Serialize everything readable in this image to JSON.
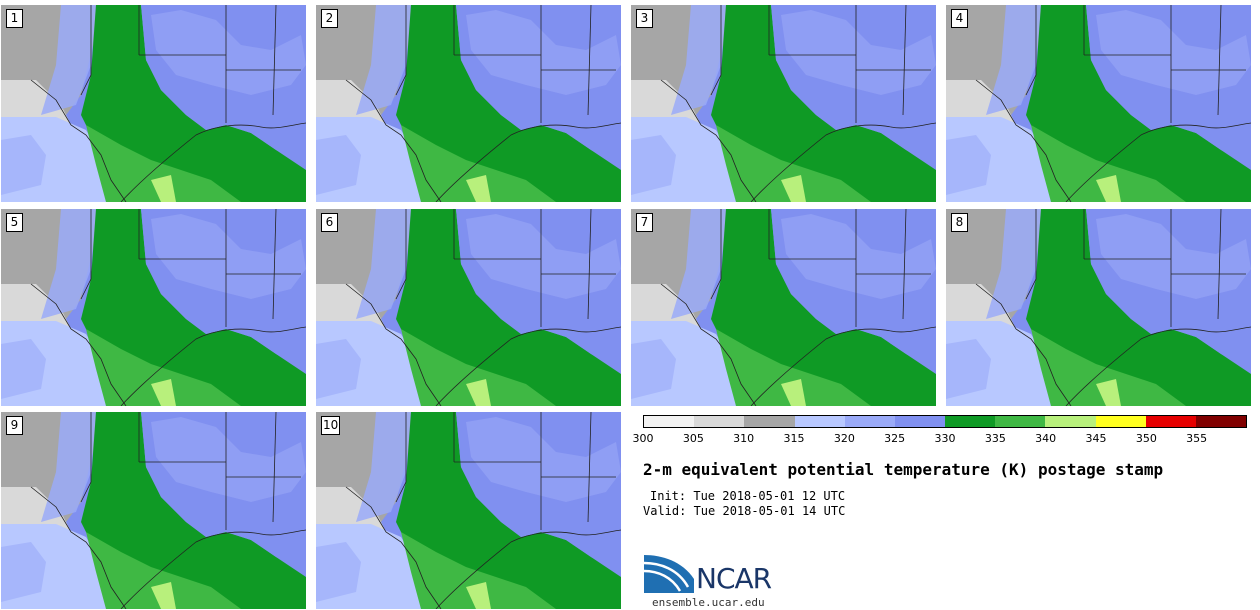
{
  "panels": [
    {
      "label": "1"
    },
    {
      "label": "2"
    },
    {
      "label": "3"
    },
    {
      "label": "4"
    },
    {
      "label": "5"
    },
    {
      "label": "6"
    },
    {
      "label": "7"
    },
    {
      "label": "8"
    },
    {
      "label": "9"
    },
    {
      "label": "10"
    }
  ],
  "colorbar": {
    "ticks": [
      "300",
      "305",
      "310",
      "315",
      "320",
      "325",
      "330",
      "335",
      "340",
      "345",
      "350",
      "355"
    ],
    "colors": [
      "#f2f2f2",
      "#d9d9d9",
      "#a6a6a6",
      "#b8c8ff",
      "#9aaaf8",
      "#8090f0",
      "#0f9a25",
      "#3fb844",
      "#b8f07c",
      "#ffff20",
      "#e60000",
      "#800000"
    ]
  },
  "map_colors": {
    "gray_light": "#d9d9d9",
    "gray": "#a6a6a6",
    "blue_light": "#b8c8ff",
    "blue_mid": "#9aaaf8",
    "blue": "#8090f0",
    "green_dark": "#0f9a25",
    "green": "#3fb844",
    "green_light": "#b8f07c"
  },
  "title": "2-m equivalent potential temperature (K) postage stamp",
  "init": "Init: Tue 2018-05-01 12 UTC",
  "valid": "Valid: Tue 2018-05-01 14 UTC",
  "logo": {
    "text": "NCAR",
    "url_text": "ensemble.ucar.edu"
  }
}
